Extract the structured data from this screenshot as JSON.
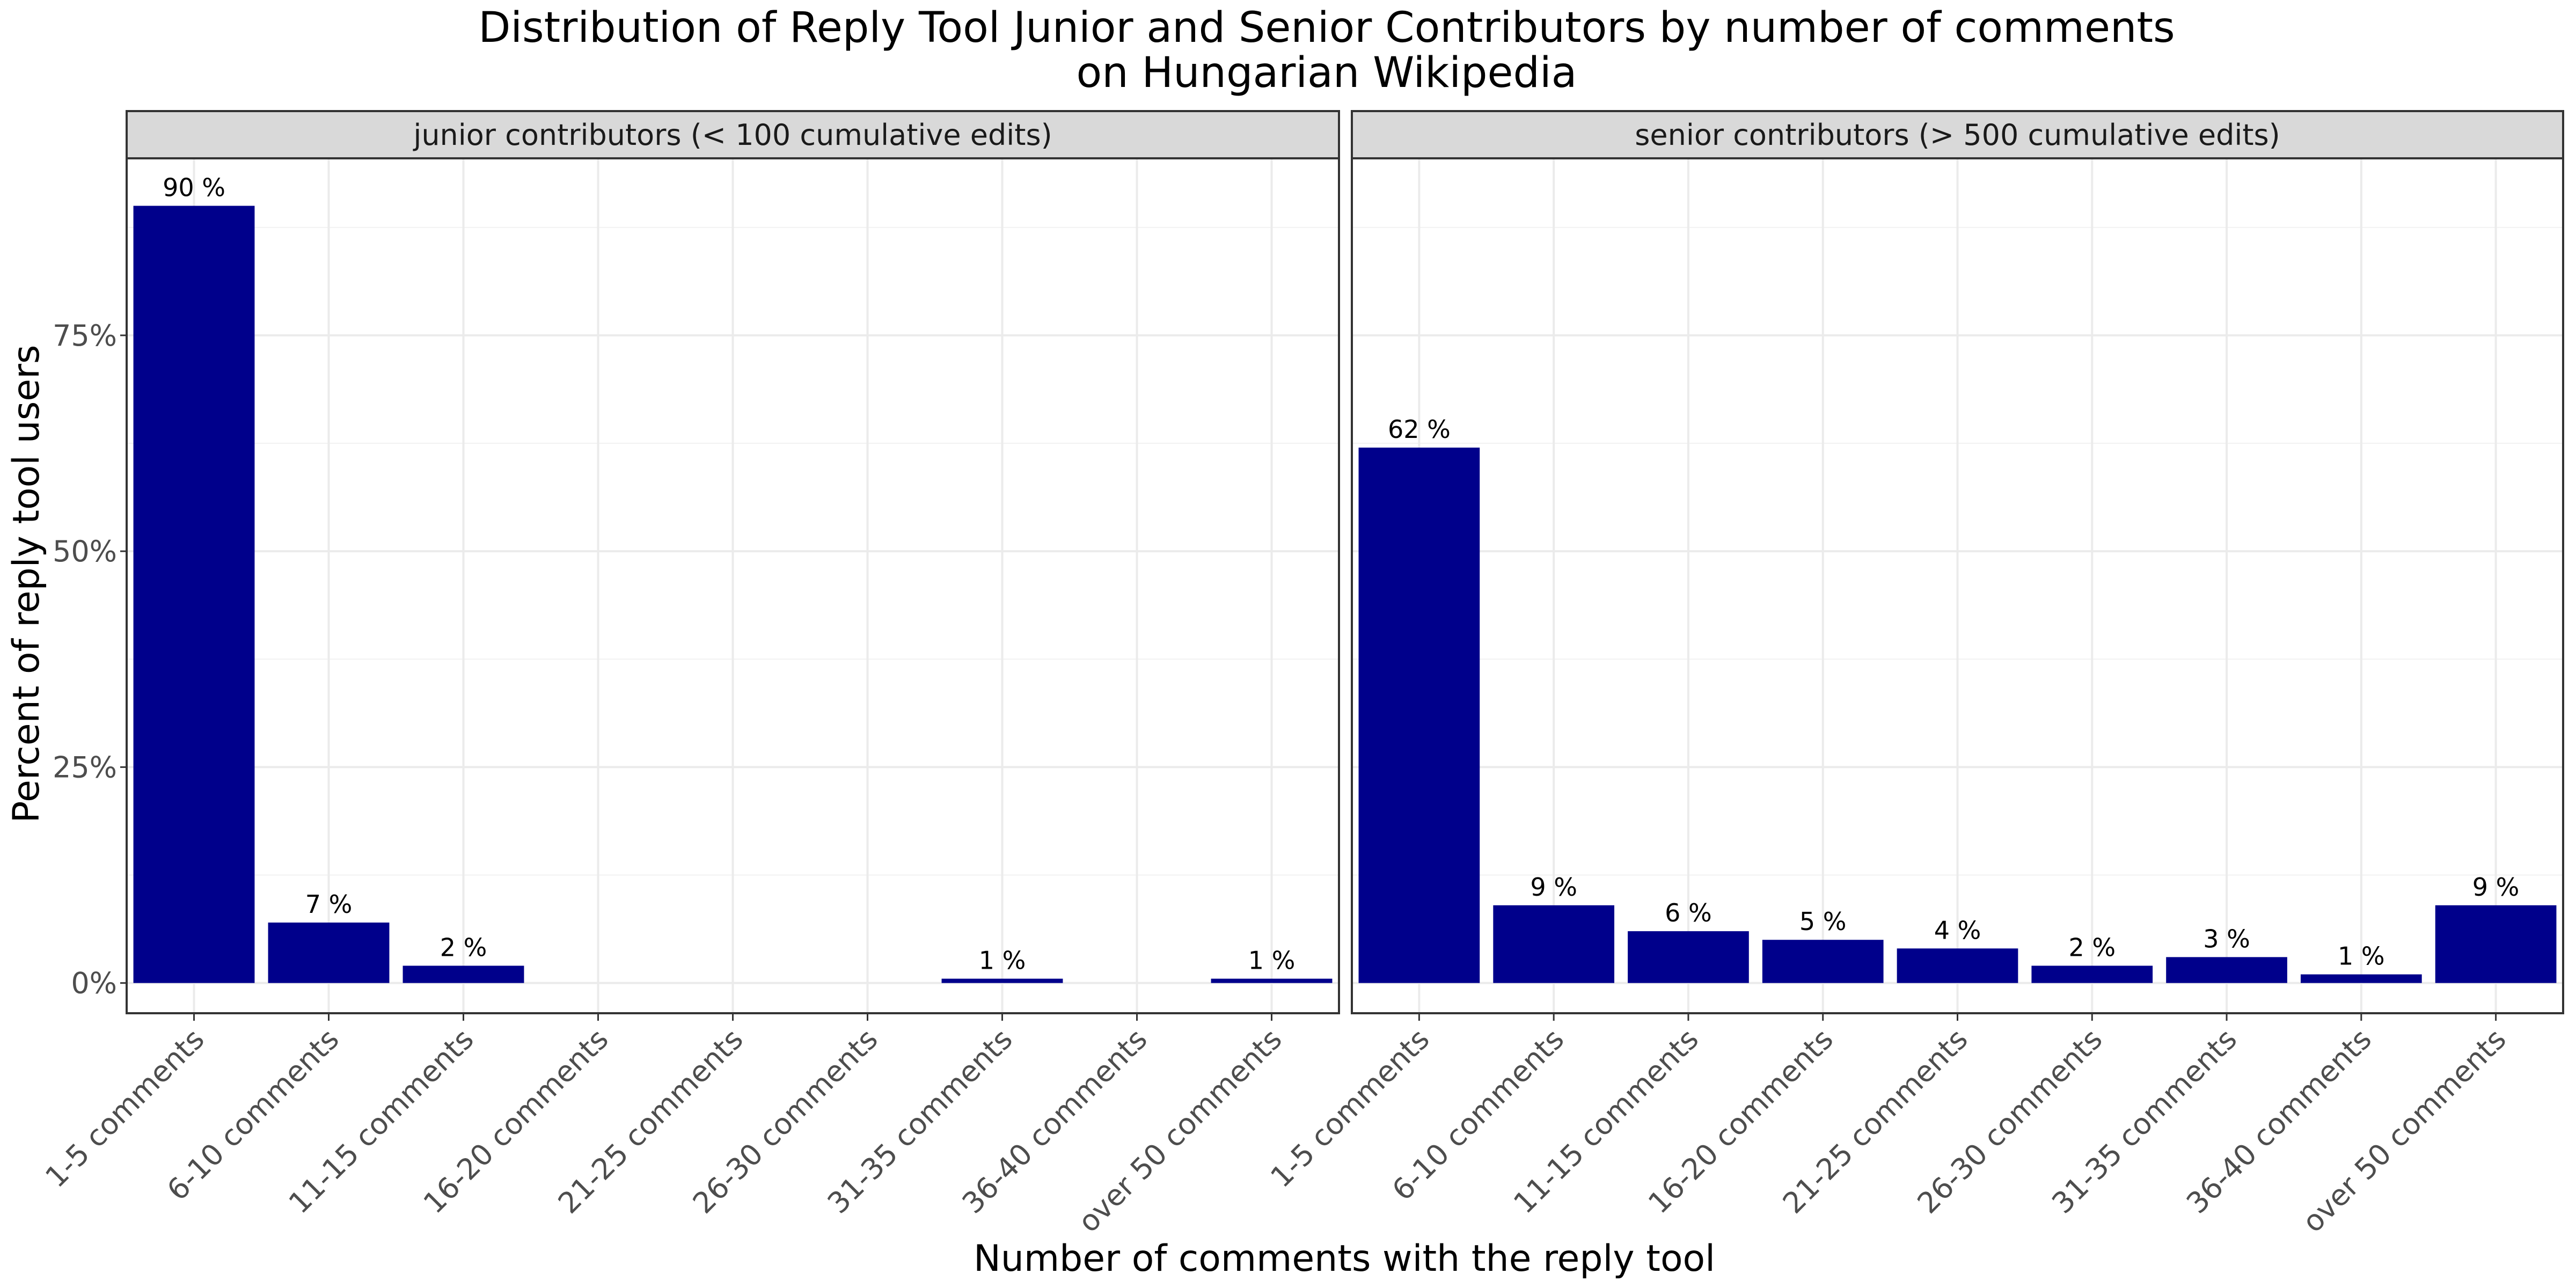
{
  "chart_data": {
    "type": "bar",
    "title_line1": "Distribution of Reply Tool Junior and Senior Contributors by number of comments",
    "title_line2": "on Hungarian Wikipedia",
    "xlabel": "Number of comments with the reply tool",
    "ylabel": "Percent of reply tool users",
    "ylim": [
      -0.035,
      0.955
    ],
    "yticks": [
      0,
      0.25,
      0.5,
      0.75
    ],
    "ytick_labels": [
      "0%",
      "25%",
      "50%",
      "75%"
    ],
    "grid": true,
    "bar_color": "#00008B",
    "categories": [
      "1-5 comments",
      "6-10 comments",
      "11-15 comments",
      "16-20 comments",
      "21-25 comments",
      "26-30 comments",
      "31-35 comments",
      "36-40 comments",
      "over 50 comments"
    ],
    "panels": [
      {
        "strip": "junior contributors (< 100 cumulative edits)",
        "values": [
          0.9,
          0.07,
          0.02,
          null,
          null,
          null,
          0.005,
          null,
          0.005
        ],
        "labels": [
          "90 %",
          "7 %",
          "2 %",
          "",
          "",
          "",
          "1 %",
          "",
          "1 %"
        ]
      },
      {
        "strip": "senior contributors (> 500 cumulative edits)",
        "values": [
          0.62,
          0.09,
          0.06,
          0.05,
          0.04,
          0.02,
          0.03,
          0.01,
          0.09
        ],
        "labels": [
          "62 %",
          "9 %",
          "6 %",
          "5 %",
          "4 %",
          "2 %",
          "3 %",
          "1 %",
          "9 %"
        ]
      }
    ]
  }
}
